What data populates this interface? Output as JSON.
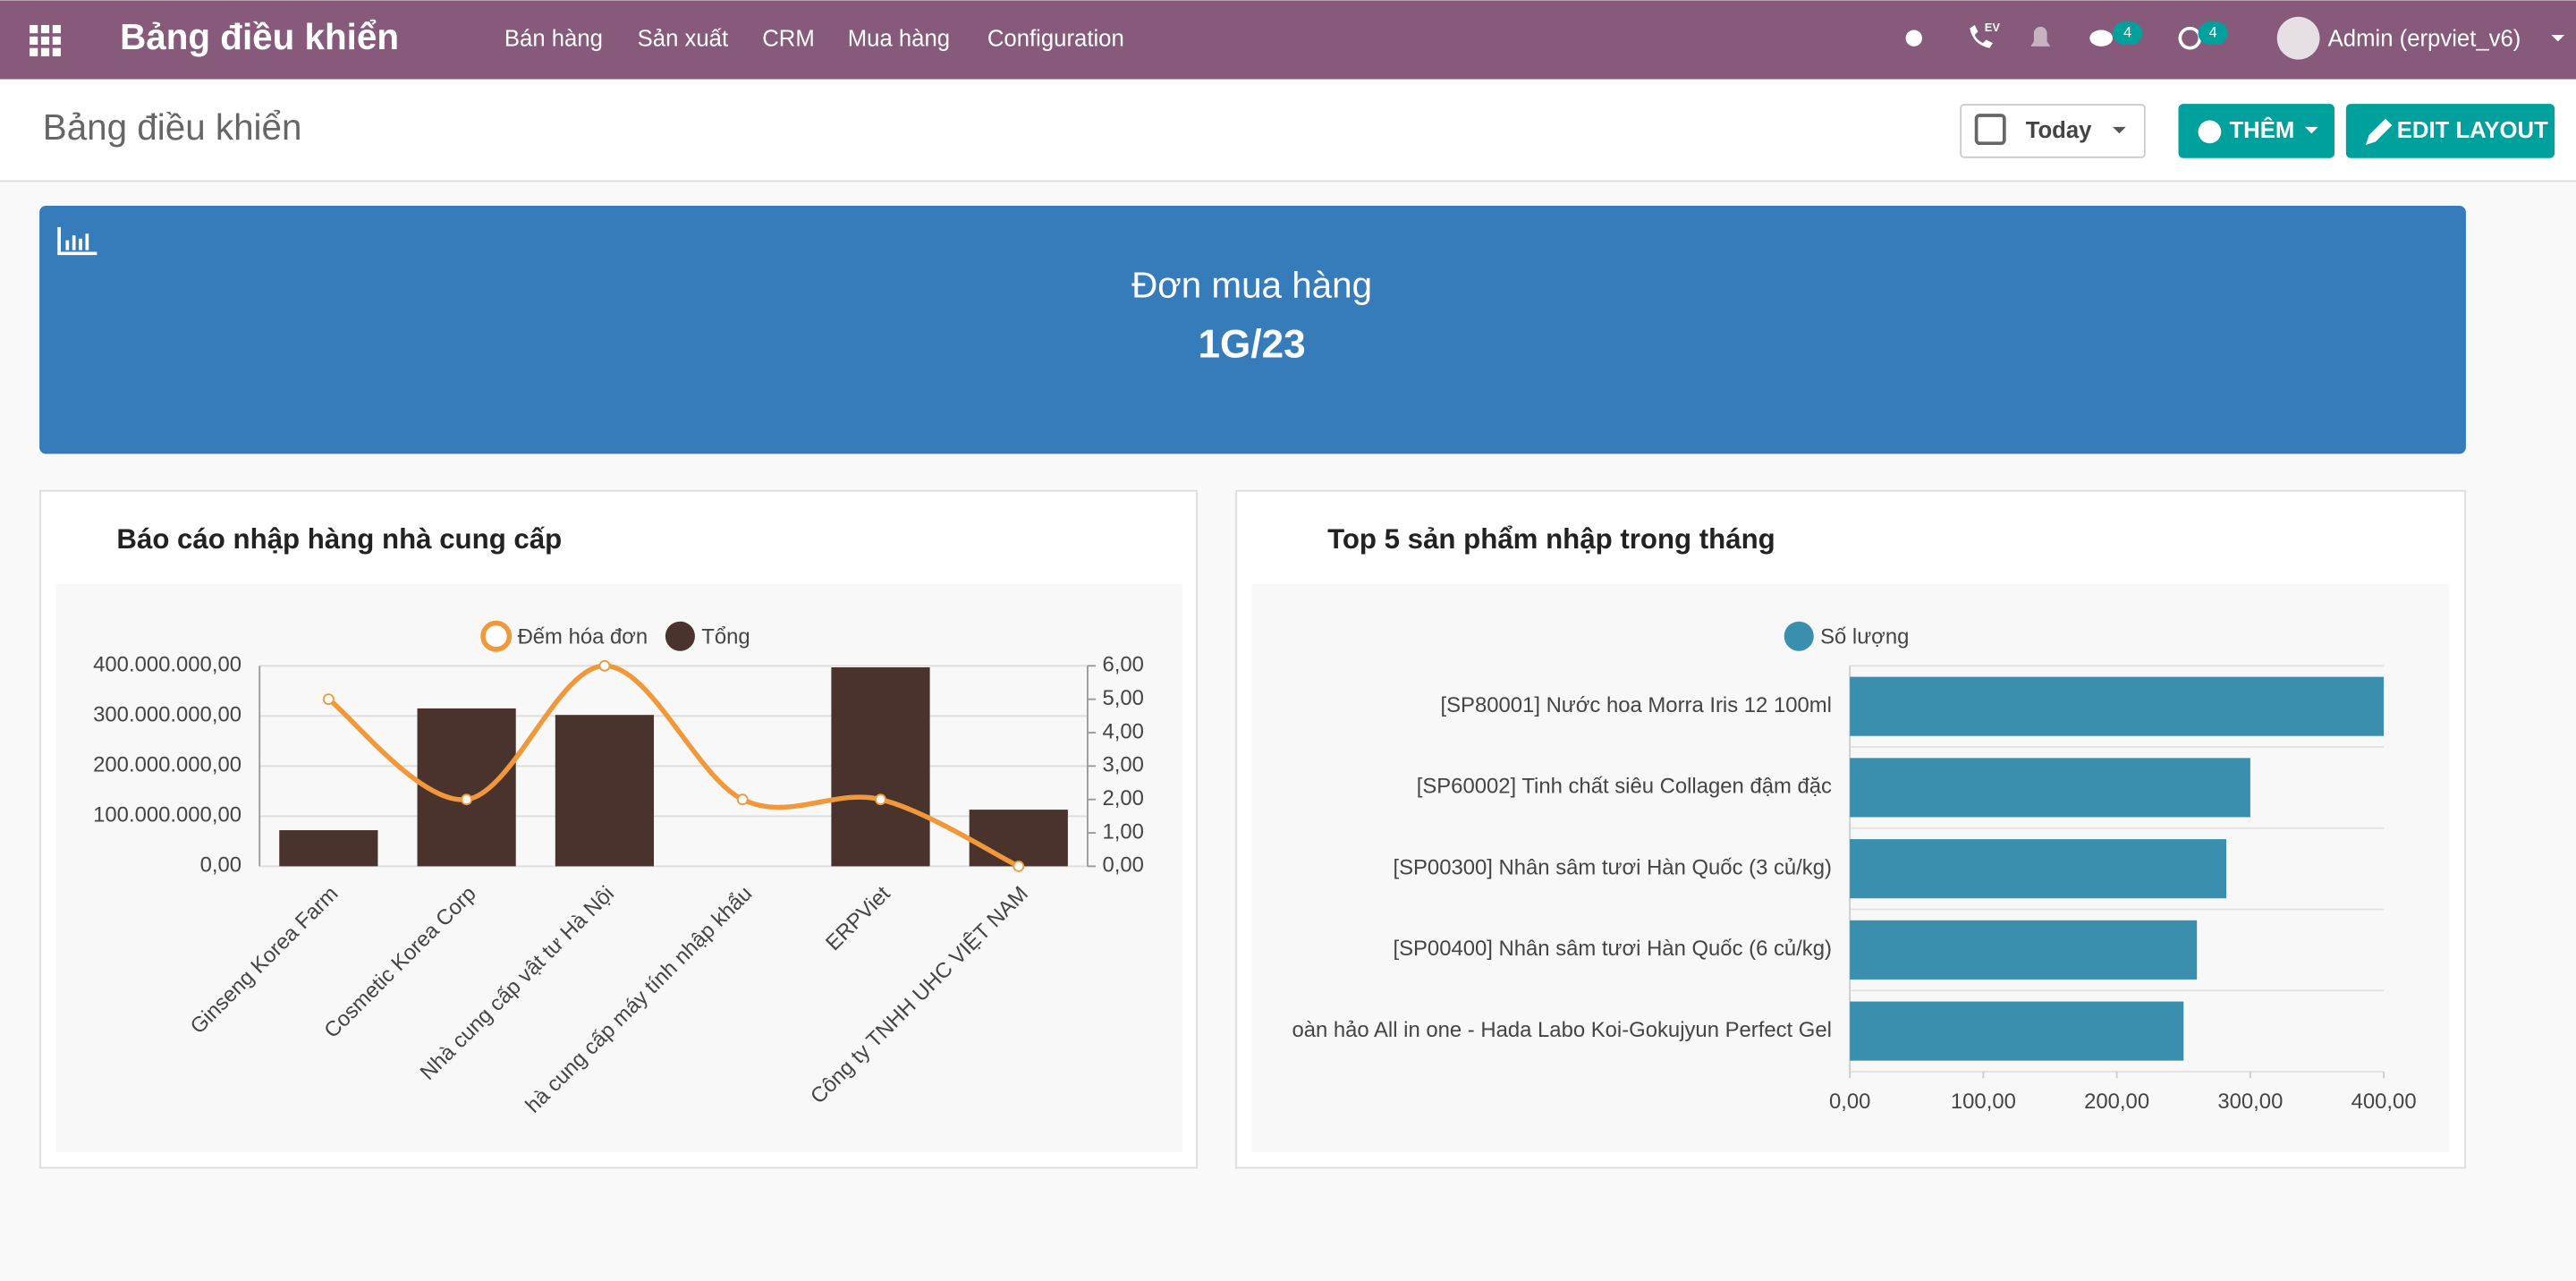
{
  "navbar": {
    "app_title": "Bảng điều khiển",
    "menu": [
      "Bán hàng",
      "Sản xuất",
      "CRM",
      "Mua hàng",
      "Configuration"
    ],
    "ev_label": "EV",
    "badges": [
      4,
      4
    ],
    "user": "Admin (erpviet_v6)"
  },
  "control_panel": {
    "title": "Bảng điều khiển",
    "date_filter": "Today",
    "add_button": "THÊM",
    "edit_button": "EDIT LAYOUT"
  },
  "tile": {
    "title": "Đơn mua hàng",
    "value": "1G/23"
  },
  "chart_data": [
    {
      "type": "combo",
      "title": "Báo cáo nhập hàng nhà cung cấp",
      "categories": [
        "Ginseng Korea Farm",
        "Cosmetic Korea Corp",
        "Nhà cung cấp vật tư Hà Nội",
        "hà cung cấp máy tính nhập khẩu",
        "ERPViet",
        "Công ty TNHH UHC VIỆT NAM"
      ],
      "series": [
        {
          "name": "Đếm hóa đơn",
          "type": "line",
          "axis": "y2",
          "color": "#f0983a",
          "values": [
            5,
            2,
            6,
            2,
            2,
            0
          ]
        },
        {
          "name": "Tổng",
          "type": "bar",
          "color": "#4a332d",
          "values": [
            72000000,
            315000000,
            302000000,
            0,
            397000000,
            113000000
          ]
        }
      ],
      "ylim": [
        0,
        400000000
      ],
      "yticks": [
        {
          "value": 0,
          "label": "0,00"
        },
        {
          "value": 100000000,
          "label": "100.000.000,00"
        },
        {
          "value": 200000000,
          "label": "200.000.000,00"
        },
        {
          "value": 300000000,
          "label": "300.000.000,00"
        },
        {
          "value": 400000000,
          "label": "400.000.000,00"
        }
      ],
      "y2lim": [
        0,
        6
      ],
      "y2ticks": [
        {
          "value": 0,
          "label": "0,00"
        },
        {
          "value": 1,
          "label": "1,00"
        },
        {
          "value": 2,
          "label": "2,00"
        },
        {
          "value": 3,
          "label": "3,00"
        },
        {
          "value": 4,
          "label": "4,00"
        },
        {
          "value": 5,
          "label": "5,00"
        },
        {
          "value": 6,
          "label": "6,00"
        }
      ],
      "grid": true
    },
    {
      "type": "hbar",
      "title": "Top 5 sản phẩm nhập trong tháng",
      "categories": [
        "[SP80001] Nước hoa Morra Iris 12 100ml",
        "[SP60002] Tinh chất siêu Collagen đậm đặc",
        "[SP00300] Nhân sâm tươi Hàn Quốc (3 củ/kg)",
        "[SP00400] Nhân sâm tươi Hàn Quốc (6 củ/kg)",
        "oàn hảo All in one - Hada Labo Koi-Gokujyun Perfect Gel"
      ],
      "series": [
        {
          "name": "Số lượng",
          "color": "#3a8fae",
          "values": [
            400,
            300,
            282,
            260,
            250
          ]
        }
      ],
      "xlim": [
        0,
        400
      ],
      "xticks": [
        {
          "value": 0,
          "label": "0,00"
        },
        {
          "value": 100,
          "label": "100,00"
        },
        {
          "value": 200,
          "label": "200,00"
        },
        {
          "value": 300,
          "label": "300,00"
        },
        {
          "value": 400,
          "label": "400,00"
        }
      ],
      "grid": true
    }
  ]
}
